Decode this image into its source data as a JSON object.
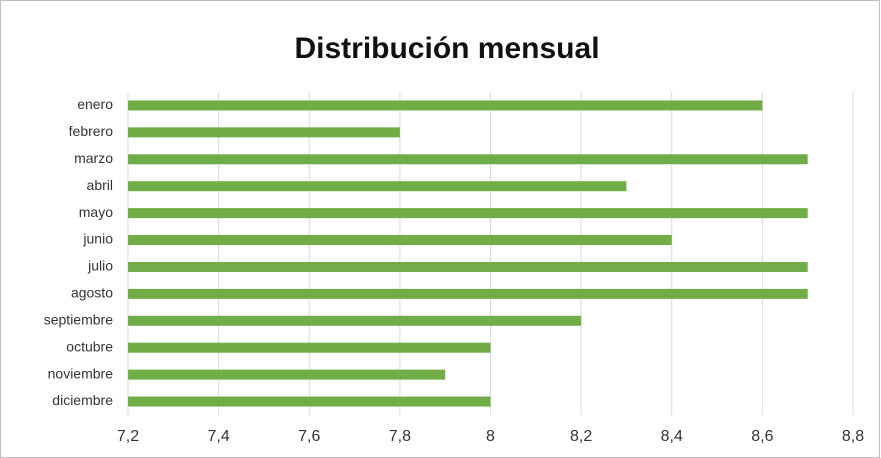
{
  "chart_data": {
    "type": "barh",
    "title": "Distribución mensual",
    "categories": [
      "enero",
      "febrero",
      "marzo",
      "abril",
      "mayo",
      "junio",
      "julio",
      "agosto",
      "septiembre",
      "octubre",
      "noviembre",
      "diciembre"
    ],
    "values": [
      8.6,
      7.8,
      8.7,
      8.3,
      8.7,
      8.4,
      8.7,
      8.7,
      8.2,
      8.0,
      7.9,
      8.0
    ],
    "color": "#70ad47",
    "xlim": [
      7.2,
      8.8
    ],
    "xticks": [
      {
        "value": 7.2,
        "label": "7,2"
      },
      {
        "value": 7.4,
        "label": "7,4"
      },
      {
        "value": 7.6,
        "label": "7,6"
      },
      {
        "value": 7.8,
        "label": "7,8"
      },
      8,
      {
        "value": 8.2,
        "label": "8,2"
      },
      {
        "value": 8.4,
        "label": "8,4"
      },
      {
        "value": 8.6,
        "label": "8,6"
      },
      {
        "value": 8.8,
        "label": "8,8"
      }
    ],
    "grid": true
  }
}
